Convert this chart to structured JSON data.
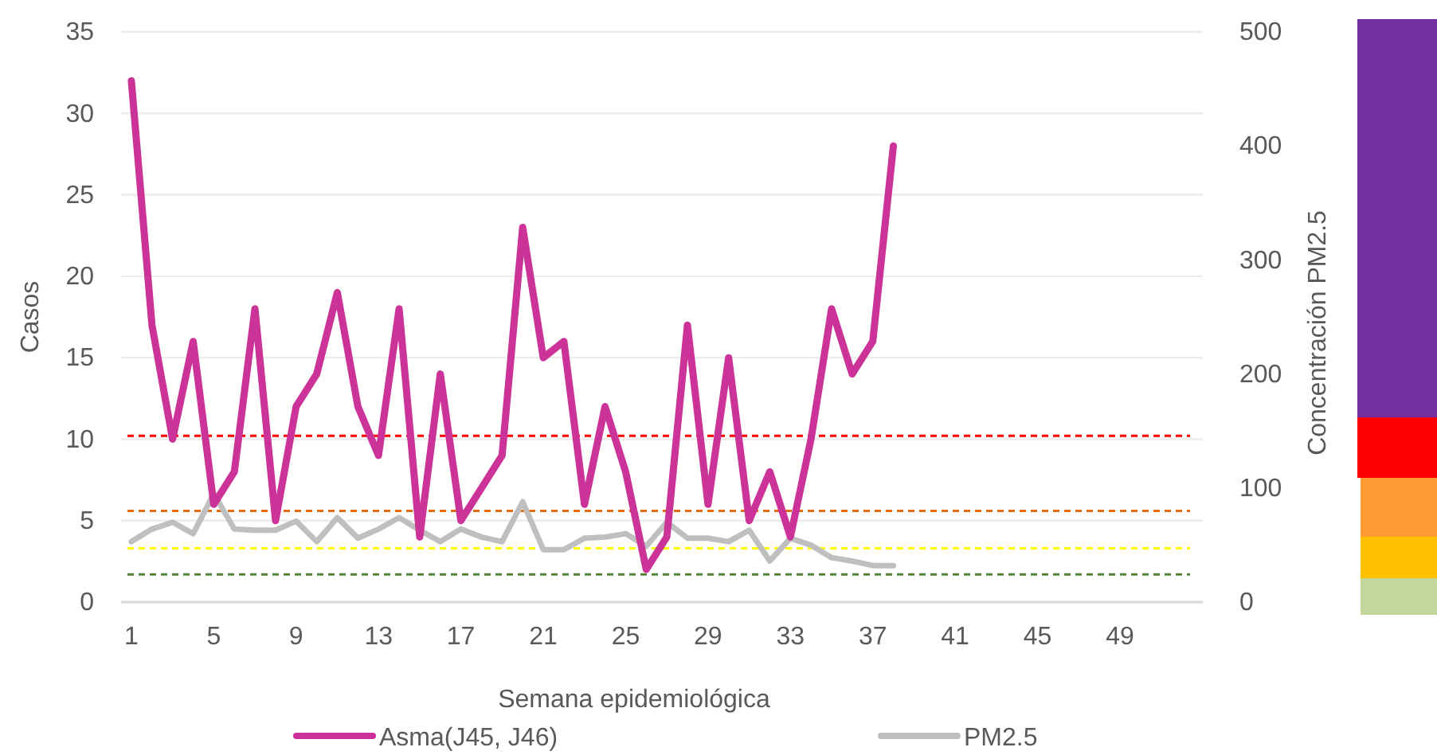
{
  "chart_data": {
    "type": "line",
    "xlabel": "Semana epidemiológica",
    "ylabel": "Casos",
    "y2label": "Concentración PM2.5",
    "categories": [
      "1",
      null,
      null,
      null,
      "5",
      null,
      null,
      null,
      "9",
      null,
      null,
      null,
      "13",
      null,
      null,
      null,
      "17",
      null,
      null,
      null,
      "21",
      null,
      null,
      null,
      "25",
      null,
      null,
      null,
      "29",
      null,
      null,
      null,
      "33",
      null,
      null,
      null,
      "37",
      null,
      null,
      null,
      "41",
      null,
      null,
      null,
      "45",
      null,
      null,
      null,
      "49",
      null,
      null,
      null
    ],
    "series": [
      {
        "name": "Asma(J45, J46)",
        "color": "#cc3399",
        "values": [
          32,
          17,
          10,
          16,
          6,
          8,
          18,
          5,
          12,
          14,
          19,
          12,
          9,
          18,
          4,
          14,
          5,
          7,
          9,
          23,
          15,
          16,
          6,
          12,
          8,
          2,
          4,
          17,
          6,
          15,
          5,
          8,
          4,
          10,
          18,
          14,
          16,
          28,
          null,
          null,
          null,
          null,
          null,
          null,
          null,
          null,
          null,
          null,
          null,
          null,
          null,
          null
        ]
      },
      {
        "name": "PM2.5",
        "color": "#bfbfbf",
        "axis": "y2",
        "values": [
          53,
          64,
          70,
          60,
          95,
          64,
          63,
          63,
          71,
          53,
          74,
          56,
          64,
          74,
          63,
          53,
          64,
          57,
          53,
          88,
          46,
          46,
          56,
          57,
          60,
          49,
          70,
          56,
          56,
          53,
          63,
          36,
          56,
          50,
          39,
          36,
          32,
          32,
          null,
          null,
          null,
          null,
          null,
          null,
          null,
          null,
          null,
          null,
          null,
          null,
          null,
          null
        ]
      }
    ],
    "ylim": [
      0,
      35
    ],
    "yticks": [
      0,
      5,
      10,
      15,
      20,
      25,
      30,
      35
    ],
    "y2lim": [
      0,
      500
    ],
    "y2ticks": [
      0,
      100,
      200,
      300,
      400,
      500
    ],
    "ref_lines": [
      {
        "axis": "y",
        "value": 10.2,
        "color": "#ff0000",
        "line_style": "dashed"
      },
      {
        "axis": "y",
        "value": 5.6,
        "color": "#e26b0a",
        "line_style": "dashed"
      },
      {
        "axis": "y",
        "value": 3.3,
        "color": "#ffff00",
        "line_style": "dashed"
      },
      {
        "axis": "y",
        "value": 1.7,
        "color": "#548235",
        "line_style": "dashed"
      }
    ],
    "grid": "y",
    "legend": "bottom",
    "marker": "none"
  }
}
